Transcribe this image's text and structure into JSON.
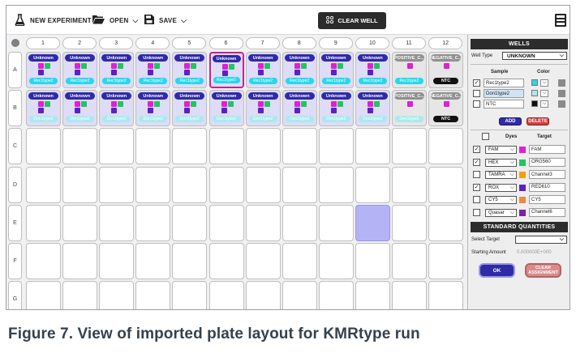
{
  "toolbar": {
    "new_experiment": "NEW EXPERIMENT",
    "open": "OPEN",
    "save": "SAVE",
    "clear_well": "CLEAR WELL"
  },
  "plate": {
    "columns": [
      "1",
      "2",
      "3",
      "4",
      "5",
      "6",
      "7",
      "8",
      "9",
      "10",
      "11",
      "12"
    ],
    "rows": [
      "A",
      "B",
      "C",
      "D",
      "E",
      "F",
      "G"
    ],
    "row_a": [
      {
        "type": "Unknown",
        "sample": "Rec1type2"
      },
      {
        "type": "Unknown",
        "sample": "Rec1type2"
      },
      {
        "type": "Unknown",
        "sample": "Rec1type2"
      },
      {
        "type": "Unknown",
        "sample": "Rec1type2"
      },
      {
        "type": "Unknown",
        "sample": "Rec1type2"
      },
      {
        "type": "Unknown",
        "sample": "Rec1type2"
      },
      {
        "type": "Unknown",
        "sample": "Rec1type2"
      },
      {
        "type": "Unknown",
        "sample": "Rec1type2"
      },
      {
        "type": "Unknown",
        "sample": "Rec1type2"
      },
      {
        "type": "Unknown",
        "sample": "Rec1type2"
      },
      {
        "type": "POSITIVE_C...",
        "sample": "Rec1type2"
      },
      {
        "type": "NEGATIVE_C...",
        "sample": "NTC"
      }
    ],
    "row_b": [
      {
        "type": "Unknown",
        "sample": "Don1type2"
      },
      {
        "type": "Unknown",
        "sample": "Don1type2"
      },
      {
        "type": "Unknown",
        "sample": "Don1type2"
      },
      {
        "type": "Unknown",
        "sample": "Don1type2"
      },
      {
        "type": "Unknown",
        "sample": "Don1type2"
      },
      {
        "type": "Unknown",
        "sample": "Don1type2"
      },
      {
        "type": "Unknown",
        "sample": "Don1type2"
      },
      {
        "type": "Unknown",
        "sample": "Don1type2"
      },
      {
        "type": "Unknown",
        "sample": "Don1type2"
      },
      {
        "type": "Unknown",
        "sample": "Don1type2"
      },
      {
        "type": "POSITIVE_C...",
        "sample": "Don1type2"
      },
      {
        "type": "NEGATIVE_C...",
        "sample": "NTC"
      }
    ],
    "colors": {
      "unknown_badge": "#2f2aa8",
      "control_badge": "#909090",
      "magenta": "#e11fd3",
      "green": "#22c55e",
      "purple": "#5b21c9",
      "cyan": "#27d8ea",
      "selected_border": "#c8228f",
      "highlight_well": "#b4b3f6"
    }
  },
  "wells_panel": {
    "title": "WELLS",
    "well_type_label": "Well Type",
    "well_type_value": "UNKNOWN",
    "sample_header": "Sample",
    "color_header": "Color",
    "samples": [
      {
        "name": "Rec1type2",
        "checked": true,
        "color": "#27d8ea"
      },
      {
        "name": "Don1type2",
        "checked": false,
        "color": "#a9e9ef"
      },
      {
        "name": "NTC",
        "checked": false,
        "color": "#111111"
      }
    ],
    "add_label": "ADD",
    "delete_label": "DELETE",
    "dyes_header": "Dyes",
    "target_header": "Target",
    "dyes": [
      {
        "dye": "FAM",
        "checked": true,
        "color": "#e11fd3",
        "target": "FAM"
      },
      {
        "dye": "HEX",
        "checked": true,
        "color": "#22c55e",
        "target": "ORG560"
      },
      {
        "dye": "TAMRA",
        "checked": false,
        "color": "#f59e0b",
        "target": "Channel3"
      },
      {
        "dye": "ROX",
        "checked": true,
        "color": "#5b21c9",
        "target": "RED610"
      },
      {
        "dye": "CY5",
        "checked": false,
        "color": "#f08a3a",
        "target": "CY5"
      },
      {
        "dye": "Quasar",
        "checked": false,
        "color": "#7c1fa8",
        "target": "Channel6"
      }
    ]
  },
  "standard_panel": {
    "title": "STANDARD QUANTITIES",
    "select_target_label": "Select Target",
    "select_target_value": "",
    "starting_amount_label": "Starting Amount",
    "starting_amount_value": "0.000000E+000",
    "ok_label": "OK",
    "clear_label": "CLEAR ASSIGNMENT"
  },
  "caption": "Figure 7. View of imported plate layout for KMRtype run"
}
